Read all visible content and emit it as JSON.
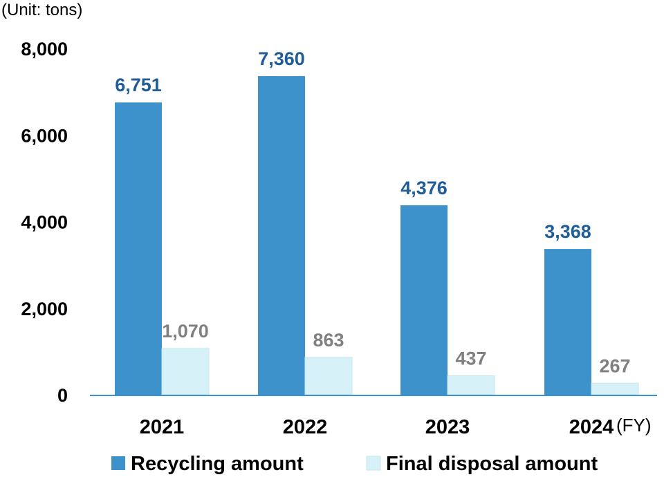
{
  "chart_data": {
    "type": "bar",
    "unit_label": "(Unit: tons)",
    "x_unit_label": "(FY)",
    "categories": [
      "2021",
      "2022",
      "2023",
      "2024"
    ],
    "series": [
      {
        "name": "Recycling amount",
        "values": [
          6751,
          7360,
          4376,
          3368
        ],
        "labels": [
          "6,751",
          "7,360",
          "4,376",
          "3,368"
        ],
        "color": "#3d92cb",
        "label_color": "#1f5d99"
      },
      {
        "name": "Final disposal amount",
        "values": [
          1070,
          863,
          437,
          267
        ],
        "labels": [
          "1,070",
          "863",
          "437",
          "267"
        ],
        "color": "#d6f1f8",
        "label_color": "#808080"
      }
    ],
    "ylim": [
      0,
      8000
    ],
    "yticks": [
      0,
      2000,
      4000,
      6000,
      8000
    ],
    "ytick_labels": [
      "0",
      "2,000",
      "4,000",
      "6,000",
      "8,000"
    ],
    "grid": false,
    "legend_position": "bottom",
    "axis_color": "#3d92cb"
  }
}
